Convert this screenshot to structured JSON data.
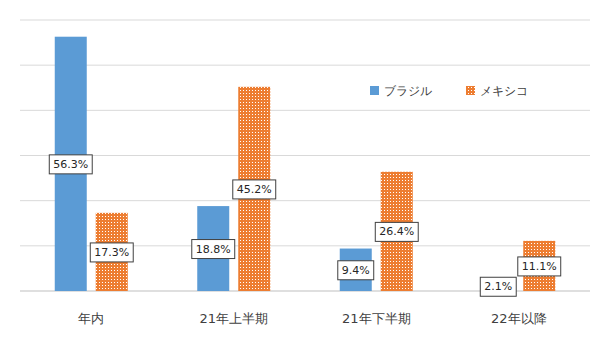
{
  "chart_data": {
    "type": "bar",
    "categories": [
      "年内",
      "21年上半期",
      "21年下半期",
      "22年以降"
    ],
    "series": [
      {
        "name": "ブラジル",
        "color": "#5b9bd5",
        "values": [
          56.3,
          18.8,
          9.4,
          2.1
        ],
        "value_labels": [
          "56.3%",
          "18.8%",
          "9.4%",
          "2.1%"
        ]
      },
      {
        "name": "メキシコ",
        "color": "#ed7d31",
        "values": [
          17.3,
          45.2,
          26.4,
          11.1
        ],
        "value_labels": [
          "17.3%",
          "45.2%",
          "26.4%",
          "11.1%"
        ]
      }
    ],
    "ylim": [
      0,
      60
    ],
    "yticks": [
      0,
      10,
      20,
      30,
      40,
      50,
      60
    ],
    "grid": true,
    "legend": "upper right",
    "data_labels": true,
    "tick_labels": "x"
  }
}
